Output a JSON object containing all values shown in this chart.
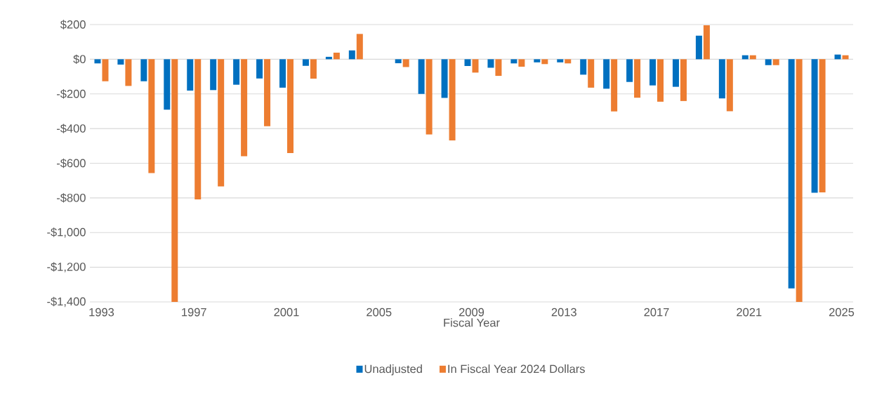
{
  "chart_data": {
    "type": "bar",
    "xlabel": "Fiscal Year",
    "categories": [
      "1993",
      null,
      null,
      null,
      "1997",
      null,
      null,
      null,
      "2001",
      null,
      null,
      null,
      "2005",
      null,
      null,
      null,
      "2009",
      null,
      null,
      null,
      "2013",
      null,
      null,
      null,
      "2017",
      null,
      null,
      null,
      "2021",
      null,
      null,
      null,
      "2025"
    ],
    "series": [
      {
        "name": "Unadjusted",
        "color": "#0070c0",
        "values": [
          -24,
          -31,
          -127,
          -291,
          -181,
          -178,
          -147,
          -111,
          -164,
          -38,
          14,
          51,
          null,
          -23,
          -200,
          -223,
          -39,
          -49,
          -24,
          -18,
          -18,
          -89,
          -170,
          -131,
          -151,
          -159,
          136,
          -226,
          23,
          -34,
          -1322,
          -770,
          27
        ]
      },
      {
        "name": "In Fiscal Year 2024 Dollars",
        "color": "#ed7d31",
        "values": [
          -127,
          -154,
          -657,
          -1400,
          -809,
          -734,
          -559,
          -386,
          -541,
          -112,
          38,
          146,
          null,
          -45,
          -434,
          -468,
          -77,
          -96,
          -43,
          -28,
          -24,
          -164,
          -301,
          -222,
          -245,
          -241,
          196,
          -300,
          23,
          -34,
          -1400,
          -768,
          23
        ]
      }
    ],
    "ylim": [
      -1400,
      200
    ],
    "yticks": [
      {
        "value": 200,
        "label": "$200"
      },
      {
        "value": 0,
        "label": "$0"
      },
      {
        "value": -200,
        "label": "-$200"
      },
      {
        "value": -400,
        "label": "-$400"
      },
      {
        "value": -600,
        "label": "-$600"
      },
      {
        "value": -800,
        "label": "-$800"
      },
      {
        "value": -1000,
        "label": "-$1,000"
      },
      {
        "value": -1200,
        "label": "-$1,200"
      },
      {
        "value": -1400,
        "label": "-$1,400"
      }
    ],
    "grid": "y",
    "legend": "bottom"
  }
}
